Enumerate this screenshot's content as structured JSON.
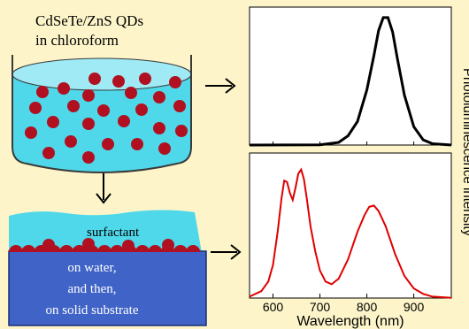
{
  "left_panel": {
    "title_line1": "CdSeTe/ZnS QDs",
    "title_line2": "in chloroform",
    "surfactant_label": "surfactant",
    "substrate_line1": "on water,",
    "substrate_line2": "and then,",
    "substrate_line3": "on solid substrate"
  },
  "colors": {
    "background": "#fdf5c9",
    "chloroform": "#4fd8ea",
    "dots": "#b01020",
    "water": "#3f63c6",
    "top_spectrum": "#000000",
    "bottom_spectrum": "#e00000"
  },
  "icons": [
    "arrow-right-icon",
    "arrow-down-icon"
  ],
  "chart_data": [
    {
      "type": "line",
      "panel": "top",
      "xlim": [
        550,
        980
      ],
      "ylim": [
        0,
        1.05
      ],
      "x_ticks": [],
      "series": [
        {
          "x": [
            550,
            700,
            740,
            760,
            780,
            800,
            815,
            825,
            835,
            845,
            855,
            865,
            880,
            900,
            920,
            940,
            980
          ],
          "y": [
            0,
            0.002,
            0.02,
            0.07,
            0.18,
            0.42,
            0.68,
            0.87,
            0.97,
            0.97,
            0.86,
            0.66,
            0.38,
            0.14,
            0.04,
            0.01,
            0
          ]
        }
      ]
    },
    {
      "type": "line",
      "panel": "bottom",
      "xlabel": "Wavelength (nm)",
      "ylabel": "Photoluminescence intensity",
      "xlim": [
        550,
        980
      ],
      "ylim": [
        0,
        1.05
      ],
      "x_ticks": [
        600,
        700,
        800,
        900
      ],
      "series": [
        {
          "x": [
            550,
            575,
            590,
            600,
            610,
            618,
            624,
            630,
            636,
            642,
            648,
            654,
            660,
            666,
            672,
            680,
            690,
            700,
            712,
            725,
            740,
            760,
            780,
            795,
            805,
            815,
            825,
            840,
            860,
            880,
            900,
            920,
            940,
            980
          ],
          "y": [
            0.01,
            0.05,
            0.12,
            0.24,
            0.48,
            0.72,
            0.85,
            0.84,
            0.76,
            0.71,
            0.8,
            0.9,
            0.93,
            0.86,
            0.72,
            0.52,
            0.34,
            0.2,
            0.12,
            0.1,
            0.14,
            0.28,
            0.48,
            0.6,
            0.66,
            0.67,
            0.63,
            0.52,
            0.32,
            0.16,
            0.07,
            0.03,
            0.01,
            0.002
          ]
        }
      ]
    }
  ]
}
